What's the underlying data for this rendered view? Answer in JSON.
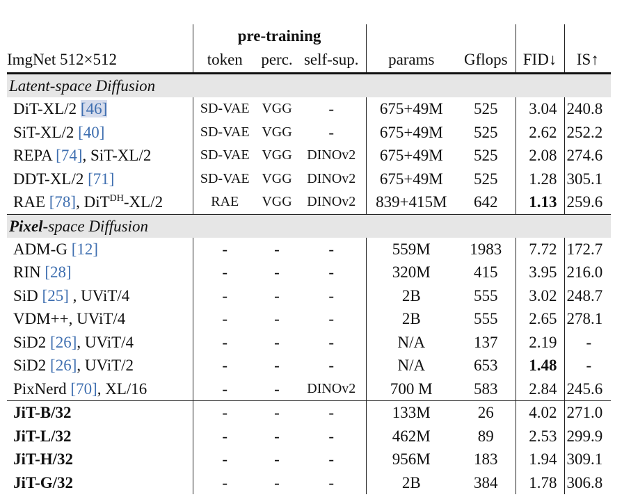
{
  "table": {
    "corner_label": "ImgNet 512×512",
    "group_header": "pre-training",
    "columns": [
      "token",
      "perc.",
      "self-sup.",
      "params",
      "Gflops",
      "FID↓",
      "IS↑"
    ],
    "sections": [
      {
        "title_bold": "",
        "title": "Latent-space Diffusion",
        "rows": [
          {
            "name": "DiT-XL/2 ",
            "cite": "[46]",
            "suffix": "",
            "token": "SD-VAE",
            "perc": "VGG",
            "selfsup": "-",
            "params": "675+49M",
            "gflops": "525",
            "fid": "3.04",
            "is": "240.8"
          },
          {
            "name": "SiT-XL/2 ",
            "cite": "[40]",
            "suffix": "",
            "token": "SD-VAE",
            "perc": "VGG",
            "selfsup": "-",
            "params": "675+49M",
            "gflops": "525",
            "fid": "2.62",
            "is": "252.2"
          },
          {
            "name": "REPA ",
            "cite": "[74]",
            "suffix": ", SiT-XL/2",
            "token": "SD-VAE",
            "perc": "VGG",
            "selfsup": "DINOv2",
            "params": "675+49M",
            "gflops": "525",
            "fid": "2.08",
            "is": "274.6"
          },
          {
            "name": "DDT-XL/2 ",
            "cite": "[71]",
            "suffix": "",
            "token": "SD-VAE",
            "perc": "VGG",
            "selfsup": "DINOv2",
            "params": "675+49M",
            "gflops": "525",
            "fid": "1.28",
            "is": "305.1"
          },
          {
            "name": "RAE ",
            "cite": "[78]",
            "suffix": ", DiT",
            "sup": "DH",
            "suffix2": "-XL/2",
            "token": "RAE",
            "perc": "VGG",
            "selfsup": "DINOv2",
            "params": "839+415M",
            "gflops": "642",
            "fid": "1.13",
            "is": "259.6"
          }
        ]
      },
      {
        "title_bold": "Pixel",
        "title": "-space Diffusion",
        "rows": [
          {
            "name": "ADM-G ",
            "cite": "[12]",
            "suffix": "",
            "token": "-",
            "perc": "-",
            "selfsup": "-",
            "params": "559M",
            "gflops": "1983",
            "fid": "7.72",
            "is": "172.7"
          },
          {
            "name": "RIN ",
            "cite": "[28]",
            "suffix": "",
            "token": "-",
            "perc": "-",
            "selfsup": "-",
            "params": "320M",
            "gflops": "415",
            "fid": "3.95",
            "is": "216.0"
          },
          {
            "name": "SiD ",
            "cite": "[25]",
            "suffix": " , UViT/4",
            "token": "-",
            "perc": "-",
            "selfsup": "-",
            "params": "2B",
            "gflops": "555",
            "fid": "3.02",
            "is": "248.7"
          },
          {
            "name": "VDM++, UViT/4",
            "cite": "",
            "suffix": "",
            "token": "-",
            "perc": "-",
            "selfsup": "-",
            "params": "2B",
            "gflops": "555",
            "fid": "2.65",
            "is": "278.1"
          },
          {
            "name": "SiD2 ",
            "cite": "[26]",
            "suffix": ", UViT/4",
            "token": "-",
            "perc": "-",
            "selfsup": "-",
            "params": "N/A",
            "gflops": "137",
            "fid": "2.19",
            "is": "-"
          },
          {
            "name": "SiD2 ",
            "cite": "[26]",
            "suffix": ", UViT/2",
            "token": "-",
            "perc": "-",
            "selfsup": "-",
            "params": "N/A",
            "gflops": "653",
            "fid": "1.48",
            "is": "-"
          },
          {
            "name": "PixNerd ",
            "cite": "[70]",
            "suffix": ", XL/16",
            "token": "-",
            "perc": "-",
            "selfsup": "DINOv2",
            "params": "700 M",
            "gflops": "583",
            "fid": "2.84",
            "is": "245.6"
          }
        ]
      },
      {
        "title": "",
        "rows": [
          {
            "name": "JiT-B/32",
            "token": "-",
            "perc": "-",
            "selfsup": "-",
            "params": "133M",
            "gflops": "26",
            "fid": "4.02",
            "is": "271.0"
          },
          {
            "name": "JiT-L/32",
            "token": "-",
            "perc": "-",
            "selfsup": "-",
            "params": "462M",
            "gflops": "89",
            "fid": "2.53",
            "is": "299.9"
          },
          {
            "name": "JiT-H/32",
            "token": "-",
            "perc": "-",
            "selfsup": "-",
            "params": "956M",
            "gflops": "183",
            "fid": "1.94",
            "is": "309.1"
          },
          {
            "name": "JiT-G/32",
            "token": "-",
            "perc": "-",
            "selfsup": "-",
            "params": "2B",
            "gflops": "384",
            "fid": "1.78",
            "is": "306.8"
          }
        ]
      }
    ],
    "bold_fid": [
      "1.13",
      "1.48"
    ],
    "colors": {
      "citation": "#3f6fb0",
      "section_band": "#e6e6e6",
      "cite_highlight": "#d6dcec"
    }
  }
}
